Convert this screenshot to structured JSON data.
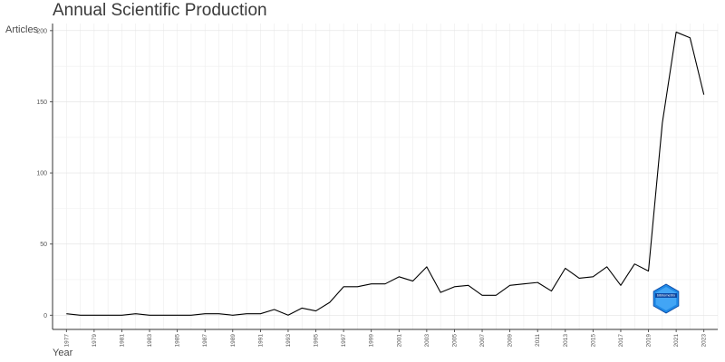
{
  "chart_data": {
    "type": "line",
    "title": "Annual Scientific Production",
    "xlabel": "Year",
    "ylabel": "Articles",
    "xlim": [
      1976,
      2024
    ],
    "ylim": [
      -10,
      205
    ],
    "yticks": [
      "0",
      "50",
      "100",
      "150",
      "200"
    ],
    "xticks": [
      "1977",
      "1979",
      "1981",
      "1983",
      "1985",
      "1987",
      "1989",
      "1991",
      "1993",
      "1995",
      "1997",
      "1999",
      "2001",
      "2003",
      "2005",
      "2007",
      "2009",
      "2011",
      "2013",
      "2015",
      "2017",
      "2019",
      "2021",
      "2023"
    ],
    "grid": true,
    "line_color": "#000000",
    "series": [
      {
        "x": [
          1977,
          1978,
          1979,
          1980,
          1981,
          1982,
          1983,
          1984,
          1985,
          1986,
          1987,
          1988,
          1989,
          1990,
          1991,
          1992,
          1993,
          1994,
          1995,
          1996,
          1997,
          1998,
          1999,
          2000,
          2001,
          2002,
          2003,
          2004,
          2005,
          2006,
          2007,
          2008,
          2009,
          2010,
          2011,
          2012,
          2013,
          2014,
          2015,
          2016,
          2017,
          2018,
          2019,
          2020,
          2021,
          2022,
          2023
        ],
        "values": [
          1,
          0,
          0,
          0,
          0,
          1,
          0,
          0,
          0,
          0,
          1,
          1,
          0,
          1,
          1,
          4,
          0,
          5,
          3,
          9,
          20,
          20,
          22,
          22,
          27,
          24,
          34,
          16,
          20,
          21,
          14,
          14,
          21,
          22,
          23,
          17,
          33,
          26,
          27,
          34,
          21,
          36,
          31,
          135,
          199,
          195,
          155
        ]
      }
    ],
    "watermark": {
      "icon": "bibliometrix-hexagon-logo",
      "text": "bibliometrix",
      "color": "#1e88e5"
    }
  }
}
